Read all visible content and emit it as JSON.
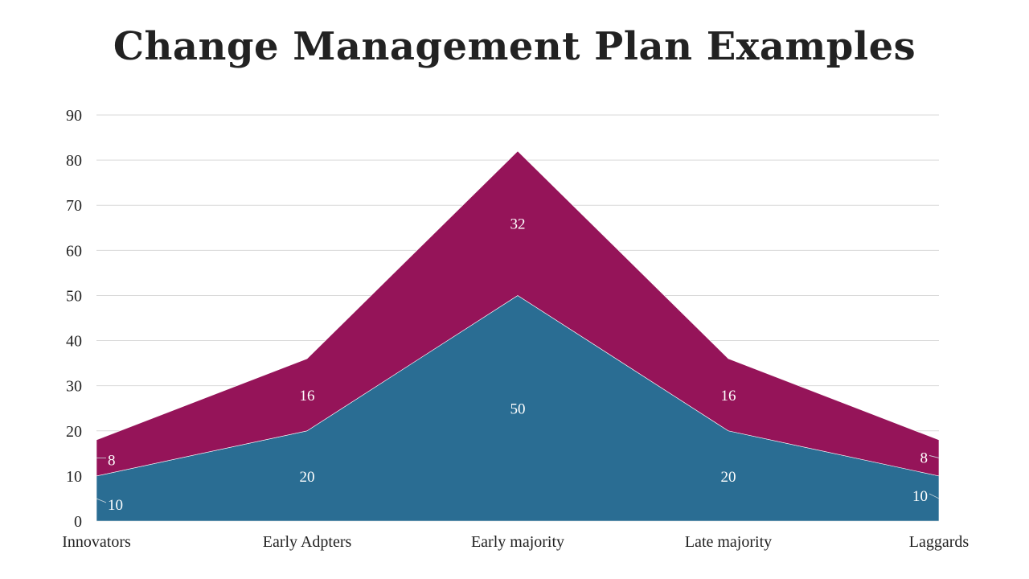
{
  "title": "Change Management Plan Examples",
  "colors": {
    "bottom": "#2a6d93",
    "top": "#951459",
    "grid": "#d9d9d9",
    "text": "#222222"
  },
  "chart_data": {
    "type": "area",
    "stacked": true,
    "categories": [
      "Innovators",
      "Early Adpters",
      "Early majority",
      "Late majority",
      "Laggards"
    ],
    "series": [
      {
        "values": [
          10,
          20,
          50,
          20,
          10
        ],
        "color": "#2a6d93"
      },
      {
        "values": [
          8,
          16,
          32,
          16,
          8
        ],
        "color": "#951459"
      }
    ],
    "ylim": [
      0,
      90
    ],
    "yticks": [
      0,
      10,
      20,
      30,
      40,
      50,
      60,
      70,
      80,
      90
    ],
    "grid": true,
    "data_labels": true
  }
}
